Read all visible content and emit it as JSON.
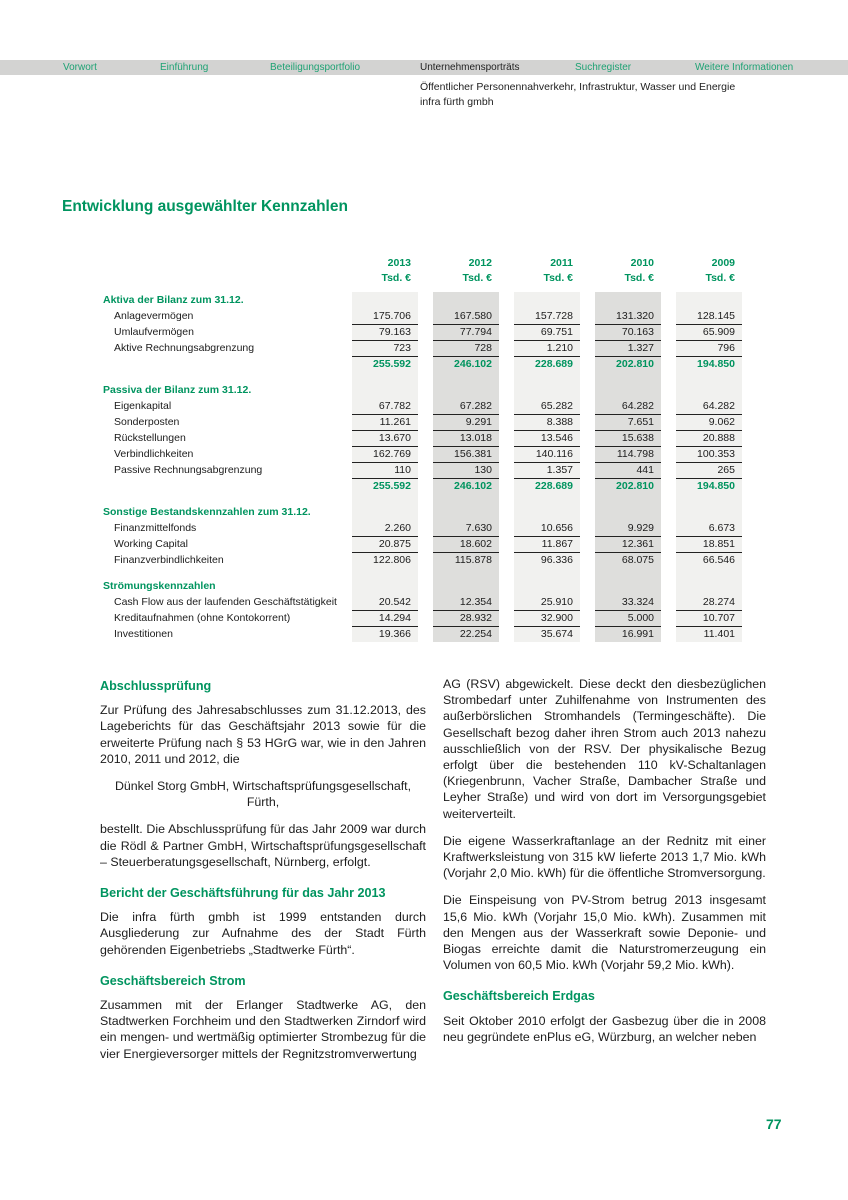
{
  "nav": {
    "items": [
      {
        "label": "Vorwort",
        "active": false
      },
      {
        "label": "Einführung",
        "active": false
      },
      {
        "label": "Beteiligungsportfolio",
        "active": false
      },
      {
        "label": "Unternehmensporträts",
        "active": true
      },
      {
        "label": "Suchregister",
        "active": false
      },
      {
        "label": "Weitere Informationen",
        "active": false
      }
    ],
    "subtitle_line1": "Öffentlicher Personennahverkehr, Infrastruktur, Wasser und Energie",
    "subtitle_line2": "infra fürth gmbh"
  },
  "page": {
    "title": "Entwicklung ausgewählter Kennzahlen",
    "number": "77"
  },
  "colors": {
    "heading_green": "#00945f",
    "nav_green": "#1ea274",
    "bar_gray": "#d3d3d2",
    "stripe_light": "#f1f1ef",
    "stripe_dark": "#dededc"
  },
  "table": {
    "year_headers": [
      "2013",
      "2012",
      "2011",
      "2010",
      "2009"
    ],
    "unit_label": "Tsd. €",
    "sections": [
      {
        "header": "Aktiva der Bilanz zum 31.12.",
        "rows": [
          {
            "label": "Anlagevermögen",
            "values": [
              "175.706",
              "167.580",
              "157.728",
              "131.320",
              "128.145"
            ],
            "underline": true,
            "total": false
          },
          {
            "label": "Umlaufvermögen",
            "values": [
              "79.163",
              "77.794",
              "69.751",
              "70.163",
              "65.909"
            ],
            "underline": true,
            "total": false
          },
          {
            "label": "Aktive Rechnungsabgrenzung",
            "values": [
              "723",
              "728",
              "1.210",
              "1.327",
              "796"
            ],
            "underline": true,
            "total": false
          },
          {
            "label": "",
            "values": [
              "255.592",
              "246.102",
              "228.689",
              "202.810",
              "194.850"
            ],
            "underline": false,
            "total": true
          }
        ]
      },
      {
        "header": "Passiva der Bilanz zum 31.12.",
        "rows": [
          {
            "label": "Eigenkapital",
            "values": [
              "67.782",
              "67.282",
              "65.282",
              "64.282",
              "64.282"
            ],
            "underline": true,
            "total": false
          },
          {
            "label": "Sonderposten",
            "values": [
              "11.261",
              "9.291",
              "8.388",
              "7.651",
              "9.062"
            ],
            "underline": true,
            "total": false
          },
          {
            "label": "Rückstellungen",
            "values": [
              "13.670",
              "13.018",
              "13.546",
              "15.638",
              "20.888"
            ],
            "underline": true,
            "total": false
          },
          {
            "label": "Verbindlichkeiten",
            "values": [
              "162.769",
              "156.381",
              "140.116",
              "114.798",
              "100.353"
            ],
            "underline": true,
            "total": false
          },
          {
            "label": "Passive Rechnungsabgrenzung",
            "values": [
              "110",
              "130",
              "1.357",
              "441",
              "265"
            ],
            "underline": true,
            "total": false
          },
          {
            "label": "",
            "values": [
              "255.592",
              "246.102",
              "228.689",
              "202.810",
              "194.850"
            ],
            "underline": false,
            "total": true
          }
        ]
      },
      {
        "header": "Sonstige Bestandskennzahlen zum 31.12.",
        "rows": [
          {
            "label": "Finanzmittelfonds",
            "values": [
              "2.260",
              "7.630",
              "10.656",
              "9.929",
              "6.673"
            ],
            "underline": true,
            "total": false
          },
          {
            "label": "Working Capital",
            "values": [
              "20.875",
              "18.602",
              "11.867",
              "12.361",
              "18.851"
            ],
            "underline": true,
            "total": false
          },
          {
            "label": "Finanzverbindlichkeiten",
            "values": [
              "122.806",
              "115.878",
              "96.336",
              "68.075",
              "66.546"
            ],
            "underline": false,
            "total": false
          }
        ]
      },
      {
        "header": "Strömungskennzahlen",
        "rows": [
          {
            "label": "Cash Flow aus der laufenden Geschäftstätigkeit",
            "values": [
              "20.542",
              "12.354",
              "25.910",
              "33.324",
              "28.274"
            ],
            "underline": true,
            "total": false
          },
          {
            "label": "Kreditaufnahmen (ohne Kontokorrent)",
            "values": [
              "14.294",
              "28.932",
              "32.900",
              "5.000",
              "10.707"
            ],
            "underline": true,
            "total": false
          },
          {
            "label": "Investitionen",
            "values": [
              "19.366",
              "22.254",
              "35.674",
              "16.991",
              "11.401"
            ],
            "underline": false,
            "total": false
          }
        ]
      }
    ]
  },
  "articles": {
    "left": [
      {
        "type": "heading",
        "text": "Abschlussprüfung"
      },
      {
        "type": "para",
        "text": "Zur Prüfung des Jahresabschlusses zum 31.12.2013, des Lageberichts für das Geschäftsjahr 2013 sowie für die erweiterte Prüfung nach § 53 HGrG war, wie in den Jahren 2010, 2011 und 2012, die"
      },
      {
        "type": "para-center",
        "text": "Dünkel Storg GmbH, Wirtschaftsprüfungsgesellschaft, Fürth,"
      },
      {
        "type": "para",
        "text": "bestellt. Die Abschlussprüfung für das Jahr 2009 war durch die Rödl & Partner GmbH, Wirtschaftsprüfungsgesellschaft – Steuerberatungsgesellschaft, Nürnberg, erfolgt."
      },
      {
        "type": "heading",
        "text": "Bericht der Geschäftsführung für das Jahr 2013"
      },
      {
        "type": "para",
        "text": "Die infra fürth gmbh ist 1999 entstanden durch Ausgliederung zur Aufnahme des der Stadt Fürth gehörenden Eigenbetriebs „Stadtwerke Fürth“."
      },
      {
        "type": "heading",
        "text": "Geschäftsbereich Strom"
      },
      {
        "type": "para",
        "text": "Zusammen mit der Erlanger Stadtwerke AG, den Stadtwerken Forchheim und den Stadtwerken Zirndorf wird ein mengen- und wertmäßig optimierter Strombezug für die vier Energieversorger mittels der Regnitzstromverwertung"
      }
    ],
    "right": [
      {
        "type": "para",
        "text": "AG (RSV) abgewickelt. Diese deckt den diesbezüglichen Strombedarf unter Zuhilfenahme von Instrumenten des außerbörslichen Stromhandels (Termingeschäfte). Die Gesellschaft bezog daher ihren Strom auch 2013 nahezu ausschließlich von der RSV. Der physikalische Bezug erfolgt über die bestehenden 110 kV-Schaltanlagen (Kriegenbrunn, Vacher Straße, Dambacher Straße und Leyher Straße) und wird von dort im Versorgungsgebiet weiterverteilt."
      },
      {
        "type": "para",
        "text": "Die eigene Wasserkraftanlage an der Rednitz mit einer Kraftwerksleistung von 315 kW lieferte 2013 1,7 Mio. kWh (Vorjahr 2,0 Mio. kWh) für die öffentliche Stromversorgung."
      },
      {
        "type": "para",
        "text": "Die Einspeisung von PV-Strom betrug 2013 insgesamt 15,6 Mio. kWh (Vorjahr 15,0 Mio. kWh). Zusammen mit den Mengen aus der Wasserkraft sowie Deponie- und Biogas erreichte damit die Naturstromerzeugung ein Volumen von 60,5 Mio. kWh (Vorjahr 59,2 Mio. kWh)."
      },
      {
        "type": "heading",
        "text": "Geschäftsbereich Erdgas"
      },
      {
        "type": "para",
        "text": "Seit Oktober 2010 erfolgt der Gasbezug über die in 2008 neu gegründete enPlus eG, Würzburg, an welcher neben"
      }
    ]
  }
}
